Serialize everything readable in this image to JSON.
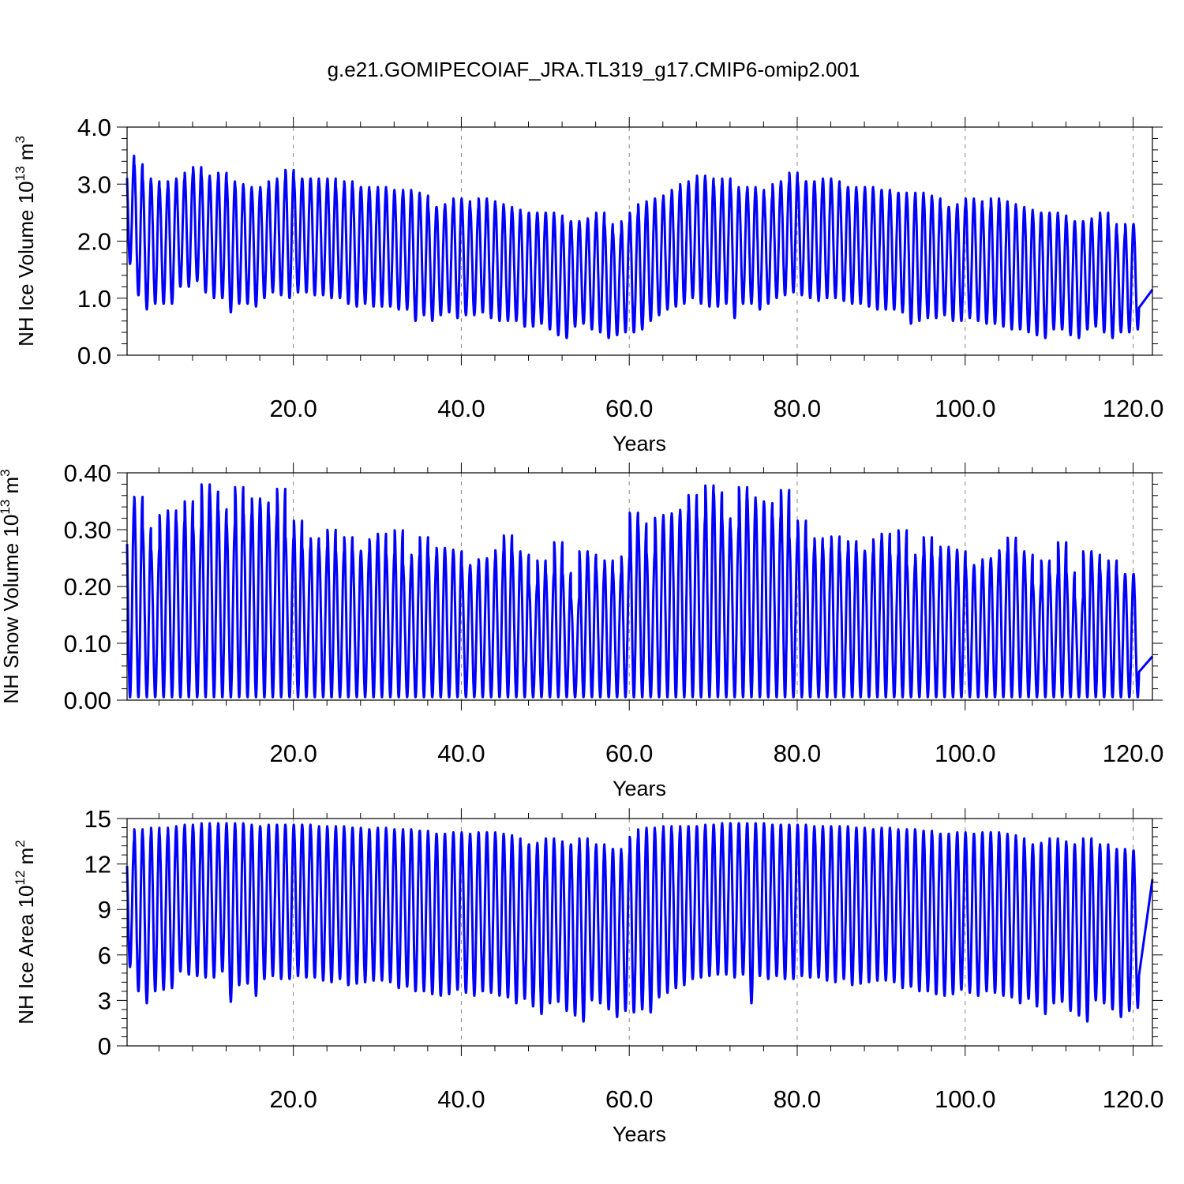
{
  "title": "g.e21.GOMIPECOIAF_JRA.TL319_g17.CMIP6-omip2.001",
  "line_color": "#0000ff",
  "chart_data": [
    {
      "type": "line",
      "ylabel": {
        "main": "NH Ice Volume 10",
        "sup": "13",
        "unit": " m",
        "unit_sup": "3"
      },
      "xlabel": "Years",
      "xlim": [
        0.2,
        122.3
      ],
      "ylim": [
        0.0,
        4.0
      ],
      "yticks": [
        0.0,
        1.0,
        2.0,
        3.0,
        4.0
      ],
      "ytick_labels": [
        "0.0",
        "1.0",
        "2.0",
        "3.0",
        "4.0"
      ],
      "xticks": [
        20,
        40,
        60,
        80,
        100,
        120
      ],
      "xtick_labels": [
        "20.0",
        "40.0",
        "60.0",
        "80.0",
        "100.0",
        "120.0"
      ],
      "series": [
        {
          "start_year": 0.2,
          "seasonal_cycle": "one maximum and one minimum per year",
          "annual_max": [
            3.5,
            3.35,
            3.1,
            3.05,
            2.95,
            3.05,
            3.1,
            3.2,
            3.3,
            3.15,
            3.1,
            3.2,
            3.05,
            3.0,
            2.95,
            2.9,
            2.95,
            3.05,
            3.1,
            3.25,
            3.1,
            3.1,
            3.1,
            3.05,
            3.1,
            2.95,
            3.05,
            2.95,
            2.95,
            2.9,
            2.95,
            2.9,
            2.85,
            2.9,
            2.85,
            2.8,
            2.6,
            2.6,
            2.65,
            2.75,
            2.7,
            2.6,
            2.75,
            2.7,
            2.65,
            2.6,
            2.55,
            2.5,
            2.5,
            2.5,
            2.5,
            2.45,
            2.35,
            2.35,
            2.35,
            2.4,
            2.5,
            2.3,
            2.15,
            2.35,
            2.5,
            2.65,
            2.7,
            2.75,
            2.8,
            2.9,
            3.0,
            3.05,
            3.15,
            3.1,
            3.0,
            3.1,
            2.95,
            2.9,
            2.95,
            2.9,
            2.8,
            3.0,
            3.05,
            3.2,
            3.05,
            3.05,
            3.05,
            3.1,
            3.05,
            2.95,
            2.95,
            2.9,
            2.95,
            2.9,
            2.9,
            2.85,
            2.85,
            2.8,
            2.85,
            2.8,
            2.75,
            2.6,
            2.6,
            2.65,
            2.75,
            2.7,
            2.6,
            2.75,
            2.7,
            2.65,
            2.6,
            2.55,
            2.5,
            2.5,
            2.5,
            2.45,
            2.35,
            2.35,
            2.35,
            2.4,
            2.5,
            2.3,
            2.15,
            2.3,
            2.3
          ],
          "annual_min": [
            1.6,
            1.05,
            0.8,
            0.9,
            0.9,
            0.9,
            1.2,
            1.2,
            1.3,
            1.1,
            1.0,
            1.0,
            0.75,
            0.9,
            0.9,
            0.85,
            1.0,
            1.1,
            1.05,
            1.0,
            1.1,
            1.1,
            1.05,
            1.05,
            1.0,
            1.0,
            0.9,
            0.85,
            0.9,
            0.85,
            0.85,
            0.85,
            0.8,
            0.8,
            0.6,
            0.7,
            0.6,
            0.7,
            0.75,
            0.65,
            0.7,
            0.7,
            0.75,
            0.65,
            0.6,
            0.6,
            0.6,
            0.5,
            0.5,
            0.55,
            0.45,
            0.35,
            0.3,
            0.5,
            0.55,
            0.45,
            0.4,
            0.3,
            0.35,
            0.4,
            0.4,
            0.45,
            0.6,
            0.7,
            0.8,
            0.85,
            0.9,
            1.0,
            0.9,
            0.85,
            0.85,
            0.9,
            0.65,
            0.9,
            0.9,
            0.8,
            0.9,
            1.0,
            1.05,
            1.1,
            1.05,
            1.0,
            0.95,
            1.0,
            1.0,
            0.95,
            0.9,
            0.9,
            0.85,
            0.8,
            0.8,
            0.8,
            0.75,
            0.55,
            0.6,
            0.65,
            0.65,
            0.7,
            0.6,
            0.6,
            0.65,
            0.6,
            0.55,
            0.55,
            0.5,
            0.45,
            0.45,
            0.4,
            0.35,
            0.3,
            0.45,
            0.45,
            0.35,
            0.3,
            0.45,
            0.5,
            0.4,
            0.3,
            0.4,
            0.4,
            0.45
          ],
          "end_value": 1.15
        }
      ]
    },
    {
      "type": "line",
      "ylabel": {
        "main": "NH Snow Volume 10",
        "sup": "13",
        "unit": " m",
        "unit_sup": "3"
      },
      "xlabel": "Years",
      "xlim": [
        0.2,
        122.3
      ],
      "ylim": [
        0.0,
        0.4
      ],
      "yticks": [
        0.0,
        0.1,
        0.2,
        0.3,
        0.4
      ],
      "ytick_labels": [
        "0.00",
        "0.10",
        "0.20",
        "0.30",
        "0.40"
      ],
      "xticks": [
        20,
        40,
        60,
        80,
        100,
        120
      ],
      "xtick_labels": [
        "20.0",
        "40.0",
        "60.0",
        "80.0",
        "100.0",
        "120.0"
      ],
      "series": [
        {
          "start_year": 0.2,
          "seasonal_cycle": "one maximum and one minimum per year",
          "annual_max": [
            0.345,
            0.358,
            0.303,
            0.266,
            0.326,
            0.334,
            0.316,
            0.35,
            0.305,
            0.38,
            0.367,
            0.336,
            0.31,
            0.375,
            0.33,
            0.355,
            0.348,
            0.328,
            0.372,
            0.288,
            0.316,
            0.27,
            0.285,
            0.27,
            0.3,
            0.263,
            0.287,
            0.263,
            0.262,
            0.283,
            0.293,
            0.258,
            0.299,
            0.24,
            0.256,
            0.287,
            0.256,
            0.268,
            0.265,
            0.262,
            0.236,
            0.238,
            0.248,
            0.25,
            0.264,
            0.29,
            0.262,
            0.256,
            0.205,
            0.246,
            0.225,
            0.278,
            0.224,
            0.18,
            0.262,
            0.256,
            0.232,
            0.246,
            0.226,
            0.253,
            0.33,
            0.311,
            0.26,
            0.321,
            0.326,
            0.329,
            0.335,
            0.361,
            0.324,
            0.378,
            0.366,
            0.32,
            0.306,
            0.375,
            0.357,
            0.35,
            0.347,
            0.325,
            0.37,
            0.288,
            0.316,
            0.27,
            0.285,
            0.27,
            0.288,
            0.263,
            0.28,
            0.263,
            0.262,
            0.283,
            0.293,
            0.258,
            0.299,
            0.24,
            0.256,
            0.287,
            0.256,
            0.27,
            0.265,
            0.262,
            0.236,
            0.238,
            0.248,
            0.25,
            0.264,
            0.286,
            0.262,
            0.256,
            0.205,
            0.246,
            0.224,
            0.278,
            0.225,
            0.18,
            0.262,
            0.256,
            0.232,
            0.246,
            0.222,
            0.222,
            0.222
          ],
          "annual_min": [
            0.005
          ],
          "end_value": 0.077
        }
      ]
    },
    {
      "type": "line",
      "ylabel": {
        "main": "NH Ice Area 10",
        "sup": "12",
        "unit": " m",
        "unit_sup": "2"
      },
      "xlabel": "Years",
      "xlim": [
        0.2,
        122.3
      ],
      "ylim": [
        0,
        15
      ],
      "yticks": [
        0,
        3,
        6,
        9,
        12,
        15
      ],
      "ytick_labels": [
        "0",
        "3",
        "6",
        "9",
        "12",
        "15"
      ],
      "xticks": [
        20,
        40,
        60,
        80,
        100,
        120
      ],
      "xtick_labels": [
        "20.0",
        "40.0",
        "60.0",
        "80.0",
        "100.0",
        "120.0"
      ],
      "series": [
        {
          "start_year": 0.2,
          "seasonal_cycle": "one maximum and one minimum per year",
          "annual_max": [
            13.6,
            14.3,
            14.0,
            14.4,
            14.0,
            14.4,
            14.5,
            14.6,
            14.5,
            14.7,
            14.6,
            14.7,
            14.6,
            14.7,
            14.6,
            14.5,
            14.5,
            14.6,
            14.6,
            14.6,
            14.6,
            14.6,
            14.4,
            14.5,
            14.4,
            14.5,
            14.4,
            14.4,
            14.3,
            14.3,
            14.4,
            14.3,
            14.2,
            14.3,
            14.2,
            14.2,
            14.0,
            14.0,
            14.0,
            14.1,
            14.0,
            14.0,
            14.1,
            14.1,
            14.0,
            13.9,
            13.7,
            13.3,
            13.3,
            13.4,
            13.7,
            13.5,
            13.3,
            13.3,
            13.7,
            13.2,
            13.3,
            13.0,
            13.0,
            12.8,
            13.8,
            14.3,
            14.4,
            14.2,
            14.5,
            14.2,
            14.5,
            14.5,
            14.5,
            14.6,
            14.6,
            14.7,
            14.7,
            14.7,
            14.7,
            14.7,
            14.6,
            14.6,
            14.6,
            14.6,
            14.6,
            14.5,
            14.4,
            14.5,
            14.4,
            14.5,
            14.4,
            14.4,
            14.3,
            14.3,
            14.4,
            14.3,
            14.2,
            14.3,
            14.2,
            14.2,
            14.0,
            14.0,
            14.0,
            14.1,
            14.0,
            14.0,
            14.1,
            14.1,
            14.0,
            13.9,
            13.7,
            13.3,
            13.3,
            13.4,
            13.7,
            13.5,
            13.3,
            13.3,
            13.7,
            13.2,
            13.3,
            13.0,
            13.0,
            12.9,
            12.9
          ],
          "annual_min": [
            5.2,
            3.6,
            2.8,
            3.6,
            3.7,
            3.8,
            4.9,
            4.7,
            4.6,
            4.5,
            4.5,
            4.9,
            2.9,
            4.0,
            4.1,
            3.3,
            4.4,
            4.6,
            4.4,
            4.4,
            4.6,
            4.5,
            4.5,
            4.3,
            4.2,
            4.4,
            4.0,
            4.1,
            4.2,
            4.3,
            4.3,
            4.2,
            3.8,
            3.9,
            3.6,
            3.6,
            3.4,
            3.3,
            3.4,
            3.7,
            3.5,
            3.3,
            3.6,
            3.5,
            3.3,
            3.2,
            2.8,
            3.1,
            2.6,
            2.1,
            2.8,
            2.9,
            2.3,
            2.0,
            1.6,
            3.0,
            2.8,
            2.4,
            1.9,
            2.3,
            2.2,
            2.4,
            2.2,
            3.2,
            3.5,
            3.8,
            4.0,
            4.4,
            4.5,
            4.6,
            4.7,
            4.7,
            4.5,
            4.7,
            2.8,
            4.6,
            4.4,
            4.6,
            4.4,
            4.4,
            4.6,
            4.5,
            4.5,
            4.3,
            4.2,
            4.4,
            4.0,
            4.1,
            4.2,
            4.3,
            4.3,
            4.2,
            3.8,
            3.9,
            3.6,
            3.6,
            3.4,
            3.3,
            3.4,
            3.7,
            3.5,
            3.3,
            3.6,
            3.5,
            3.3,
            3.2,
            2.8,
            3.1,
            2.6,
            2.1,
            2.8,
            2.9,
            2.3,
            2.0,
            1.6,
            3.0,
            2.8,
            2.4,
            1.9,
            2.3,
            2.5
          ],
          "end_value": 11.0
        }
      ]
    }
  ]
}
